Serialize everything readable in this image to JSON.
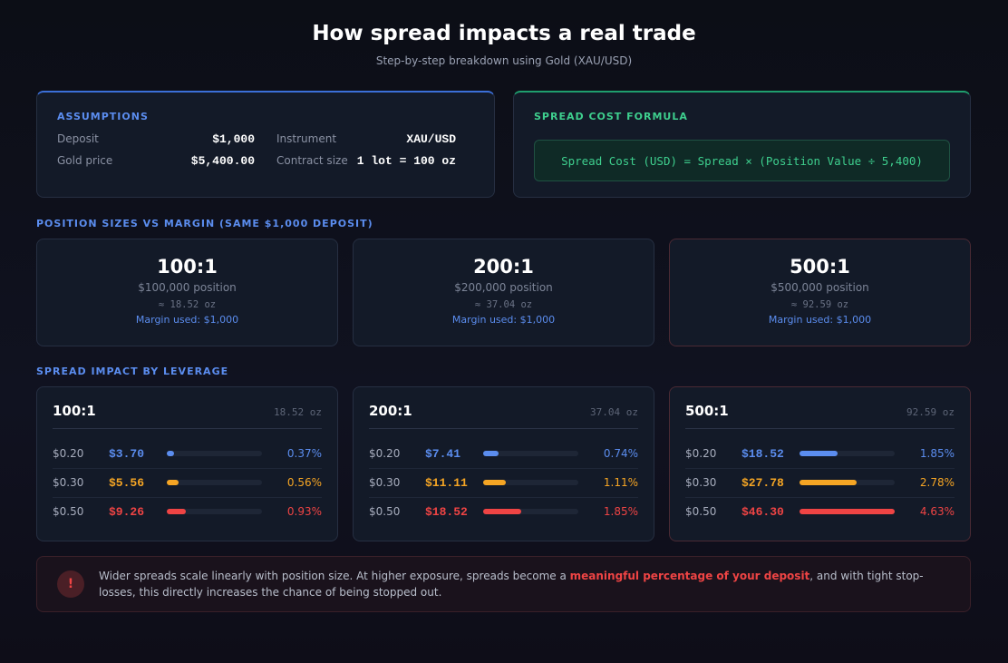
{
  "header": {
    "title": "How spread impacts a real trade",
    "subtitle": "Step-by-step breakdown using Gold (XAU/USD)"
  },
  "assumptions": {
    "heading": "ASSUMPTIONS",
    "items": [
      {
        "label": "Deposit",
        "value": "$1,000"
      },
      {
        "label": "Instrument",
        "value": "XAU/USD"
      },
      {
        "label": "Gold price",
        "value": "$5,400.00"
      },
      {
        "label": "Contract size",
        "value": "1 lot = 100 oz"
      }
    ]
  },
  "formula": {
    "heading": "SPREAD COST FORMULA",
    "text": "Spread Cost (USD) = Spread × (Position Value ÷ 5,400)"
  },
  "positions": {
    "heading": "POSITION SIZES VS MARGIN (SAME $1,000 DEPOSIT)",
    "cards": [
      {
        "leverage": "100:1",
        "position": "$100,000 position",
        "ounces": "≈ 18.52 oz",
        "margin": "Margin used: $1,000"
      },
      {
        "leverage": "200:1",
        "position": "$200,000 position",
        "ounces": "≈ 37.04 oz",
        "margin": "Margin used: $1,000"
      },
      {
        "leverage": "500:1",
        "position": "$500,000 position",
        "ounces": "≈ 92.59 oz",
        "margin": "Margin used: $1,000"
      }
    ]
  },
  "impact": {
    "heading": "SPREAD IMPACT BY LEVERAGE",
    "cards": [
      {
        "leverage": "100:1",
        "ounces": "18.52 oz",
        "rows": [
          {
            "spread": "$0.20",
            "cost": "$3.70",
            "pct": 0.37,
            "pct_label": "0.37%"
          },
          {
            "spread": "$0.30",
            "cost": "$5.56",
            "pct": 0.56,
            "pct_label": "0.56%"
          },
          {
            "spread": "$0.50",
            "cost": "$9.26",
            "pct": 0.93,
            "pct_label": "0.93%"
          }
        ]
      },
      {
        "leverage": "200:1",
        "ounces": "37.04 oz",
        "rows": [
          {
            "spread": "$0.20",
            "cost": "$7.41",
            "pct": 0.74,
            "pct_label": "0.74%"
          },
          {
            "spread": "$0.30",
            "cost": "$11.11",
            "pct": 1.11,
            "pct_label": "1.11%"
          },
          {
            "spread": "$0.50",
            "cost": "$18.52",
            "pct": 1.85,
            "pct_label": "1.85%"
          }
        ]
      },
      {
        "leverage": "500:1",
        "ounces": "92.59 oz",
        "rows": [
          {
            "spread": "$0.20",
            "cost": "$18.52",
            "pct": 1.85,
            "pct_label": "1.85%"
          },
          {
            "spread": "$0.30",
            "cost": "$27.78",
            "pct": 2.78,
            "pct_label": "2.78%"
          },
          {
            "spread": "$0.50",
            "cost": "$46.30",
            "pct": 4.63,
            "pct_label": "4.63%"
          }
        ]
      }
    ]
  },
  "notice": {
    "icon": "!",
    "before": "Wider spreads scale linearly with position size. At higher exposure, spreads become a ",
    "highlight": "meaningful percentage of your deposit",
    "after": ", and with tight stop-losses, this directly increases the chance of being stopped out."
  }
}
